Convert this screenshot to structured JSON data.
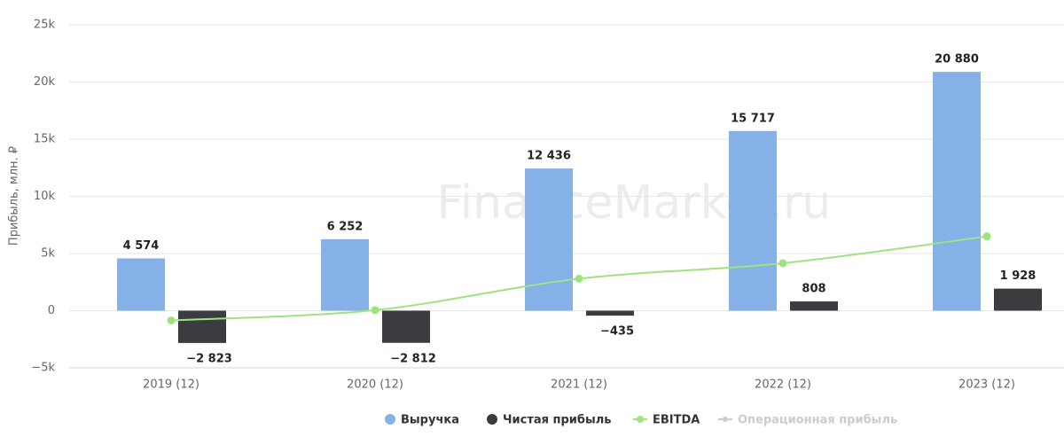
{
  "chart_data": {
    "type": "bar",
    "watermark": "FinanceMarker.ru",
    "y_label": "Прибыль, млн. ₽",
    "categories": [
      "2019 (12)",
      "2020 (12)",
      "2021 (12)",
      "2022 (12)",
      "2023 (12)"
    ],
    "series": [
      {
        "name": "Выручка",
        "type": "bar",
        "color": "#86b1e6",
        "values": [
          4574,
          6252,
          12436,
          15717,
          20880
        ],
        "value_labels": [
          "4 574",
          "6 252",
          "12 436",
          "15 717",
          "20 880"
        ]
      },
      {
        "name": "Чистая прибыль",
        "type": "bar",
        "color": "#3b3c40",
        "values": [
          -2823,
          -2812,
          -435,
          808,
          1928
        ],
        "value_labels": [
          "−2 823",
          "−2 812",
          "−435",
          "808",
          "1 928"
        ]
      },
      {
        "name": "EBITDA",
        "type": "line",
        "color": "#9fe37f",
        "values": [
          -850,
          50,
          2800,
          4150,
          6500
        ]
      },
      {
        "name": "Операционная прибыль",
        "type": "line",
        "color": "#cccccc",
        "visible": false,
        "values": [
          null,
          null,
          null,
          null,
          null
        ]
      }
    ],
    "ylim": [
      -5000,
      25000
    ],
    "yticks": [
      {
        "value": -5000,
        "label": "−5k"
      },
      0,
      {
        "value": 5000,
        "label": "5k"
      },
      {
        "value": 10000,
        "label": "10k"
      },
      {
        "value": 15000,
        "label": "15k"
      },
      {
        "value": 20000,
        "label": "20k"
      },
      {
        "value": 25000,
        "label": "25k"
      }
    ],
    "grid": true,
    "legend": "bottom"
  }
}
